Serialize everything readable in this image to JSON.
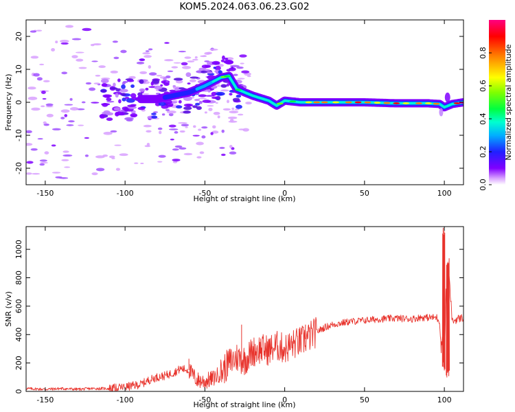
{
  "figure": {
    "title": "KOM5.2024.063.06.23.G02"
  },
  "chart_data": [
    {
      "type": "heatmap",
      "id": "spectrogram",
      "xlabel": "Height of straight line (km)",
      "ylabel": "Frequency (Hz)",
      "xlim": [
        -162,
        112
      ],
      "ylim": [
        -25,
        25
      ],
      "xticks": [
        -150,
        -100,
        -50,
        0,
        50,
        100
      ],
      "yticks": [
        -20,
        -10,
        0,
        10,
        20
      ],
      "xtick_labels": [
        "-150",
        "-100",
        "-50",
        "0",
        "50",
        "100"
      ],
      "ytick_labels": [
        "-20",
        "-10",
        "0",
        "10",
        "20"
      ],
      "grid": false,
      "colorbar": {
        "label": "Normalized spectral amplitude",
        "range": [
          0,
          1
        ],
        "ticks": [
          0.0,
          0.2,
          0.4,
          0.6,
          0.8
        ],
        "tick_labels": [
          "0.0",
          "0.2",
          "0.4",
          "0.6",
          "0.8"
        ],
        "colormap": [
          "#ffffff",
          "#d8a0ff",
          "#8000ff",
          "#2020ff",
          "#00b0ff",
          "#00ffd0",
          "#00ff40",
          "#80ff00",
          "#ffff00",
          "#ff8000",
          "#ff0000",
          "#ff0080"
        ]
      },
      "ridge": {
        "description_points_x": [
          -160,
          -100,
          -80,
          -60,
          -50,
          -40,
          -35,
          -30,
          -20,
          -10,
          -5,
          0,
          10,
          20,
          30,
          50,
          70,
          90,
          97,
          100,
          105,
          112
        ],
        "description_points_y": [
          0,
          1,
          1,
          3,
          5,
          7.5,
          8,
          4,
          2,
          0.5,
          -1,
          0.5,
          0,
          0,
          0,
          0,
          -0.3,
          -0.3,
          -0.5,
          -1.5,
          -0.5,
          0
        ]
      }
    },
    {
      "type": "line",
      "id": "snr",
      "xlabel": "Height of straight line (km)",
      "ylabel": "SNR (v/v)",
      "xlim": [
        -162,
        112
      ],
      "ylim": [
        0,
        1160
      ],
      "xticks": [
        -150,
        -100,
        -50,
        0,
        50,
        100
      ],
      "yticks": [
        0,
        200,
        400,
        600,
        800,
        1000
      ],
      "xtick_labels": [
        "-150",
        "-100",
        "-50",
        "0",
        "50",
        "100"
      ],
      "ytick_labels": [
        "0",
        "200",
        "400",
        "600",
        "800",
        "1000"
      ],
      "grid": false,
      "color": "#e8332c",
      "x": [
        -162,
        -150,
        -140,
        -130,
        -120,
        -110,
        -100,
        -90,
        -85,
        -80,
        -75,
        -70,
        -65,
        -60,
        -55,
        -50,
        -45,
        -40,
        -35,
        -30,
        -25,
        -20,
        -15,
        -10,
        -5,
        0,
        5,
        10,
        15,
        20,
        25,
        30,
        40,
        50,
        60,
        70,
        80,
        85,
        90,
        95,
        97,
        98,
        99,
        100,
        101,
        102,
        103,
        105,
        108,
        112
      ],
      "y": [
        20,
        15,
        20,
        15,
        20,
        20,
        30,
        50,
        80,
        100,
        110,
        130,
        160,
        150,
        80,
        70,
        90,
        130,
        200,
        240,
        220,
        280,
        300,
        290,
        320,
        300,
        330,
        350,
        380,
        420,
        450,
        470,
        490,
        500,
        510,
        515,
        510,
        520,
        520,
        520,
        500,
        300,
        400,
        160,
        700,
        500,
        800,
        490,
        510,
        520
      ],
      "peaks": [
        {
          "x": 99.5,
          "y": 1160
        },
        {
          "x": 102,
          "y": 950
        },
        {
          "x": -27,
          "y": 470
        },
        {
          "x": 13,
          "y": 470
        },
        {
          "x": -60,
          "y": 230
        }
      ],
      "troughs": [
        {
          "x": 100.5,
          "y": 150
        },
        {
          "x": 102.5,
          "y": 90
        }
      ]
    }
  ]
}
